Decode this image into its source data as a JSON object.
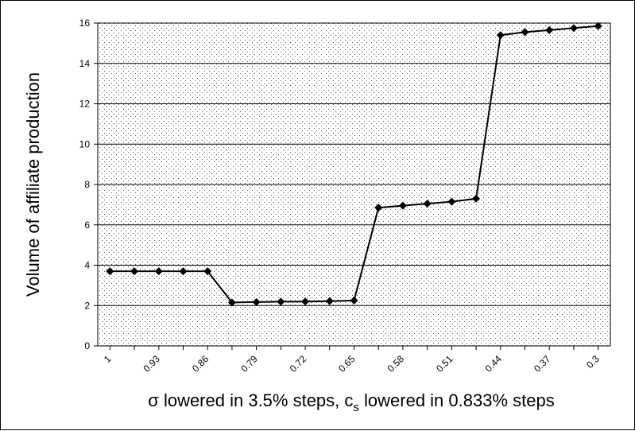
{
  "chart_data": {
    "type": "line",
    "title": "",
    "xlabel": {
      "prefix": "σ lowered in 3.5% steps, c",
      "subscript": "s",
      "suffix": " lowered in 0.833% steps"
    },
    "ylabel": "Volume of affiliate production",
    "ylim": [
      0,
      16
    ],
    "yticks": [
      0,
      2,
      4,
      6,
      8,
      10,
      12,
      14,
      16
    ],
    "ytick_labels": [
      "0",
      "2",
      "4",
      "6",
      "8",
      "10",
      "12",
      "14",
      "16"
    ],
    "x": [
      1,
      0.965,
      0.93,
      0.895,
      0.86,
      0.825,
      0.79,
      0.755,
      0.72,
      0.685,
      0.65,
      0.615,
      0.58,
      0.545,
      0.51,
      0.475,
      0.44,
      0.405,
      0.37,
      0.335,
      0.3
    ],
    "xtick_labels": [
      "1",
      "0.93",
      "0.86",
      "0.79",
      "0.72",
      "0.65",
      "0.58",
      "0.51",
      "0.44",
      "0.37",
      "0.3"
    ],
    "xlim": [
      1.0175,
      0.2825
    ],
    "series": [
      {
        "values": [
          3.7,
          3.7,
          3.7,
          3.7,
          3.7,
          2.15,
          2.17,
          2.19,
          2.2,
          2.22,
          2.25,
          6.85,
          6.95,
          7.05,
          7.15,
          7.3,
          15.4,
          15.55,
          15.65,
          15.75,
          15.85
        ],
        "color": "#000000",
        "marker": "diamond"
      }
    ],
    "grid": "horizontal",
    "plot_background": "dotted",
    "legend": "none"
  }
}
